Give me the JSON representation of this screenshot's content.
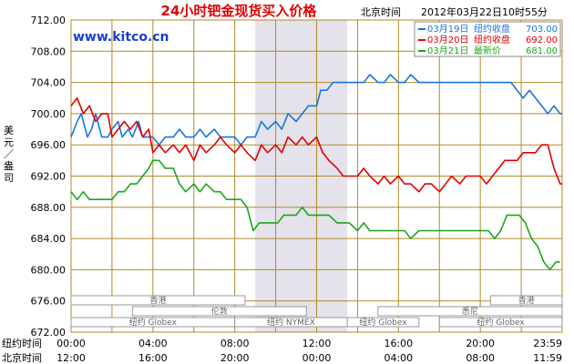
{
  "header": {
    "title": "24小时钯金现货买入价格",
    "location": "北京时间",
    "timestamp": "2012年03月22日10时55分",
    "site": "www.kitco.cn"
  },
  "colors": {
    "title": "#e00000",
    "site": "#1a3fd0",
    "grid": "#b08a2a",
    "ny_shade": "#e4e2ea",
    "legend_blue": "#1a74e0",
    "legend_red": "#e00000",
    "legend_green": "#1aa81a"
  },
  "legend": [
    {
      "date": "03月19日",
      "label": "纽约收盘",
      "value": "703.00",
      "color": "#1a74e0"
    },
    {
      "date": "03月20日",
      "label": "纽约收盘",
      "value": "692.00",
      "color": "#e00000"
    },
    {
      "date": "03月21日",
      "label": "最新价",
      "value": "681.00",
      "color": "#1aa81a"
    }
  ],
  "axis": {
    "ylabel": "美元／盎司",
    "row1_label": "纽约时间",
    "row2_label": "北京时间",
    "ny_times": [
      "00:00",
      "04:00",
      "08:00",
      "12:00",
      "16:00",
      "20:00",
      "23:59"
    ],
    "bj_times": [
      "12:00",
      "16:00",
      "20:00",
      "00:00",
      "04:00",
      "08:00",
      "11:59"
    ]
  },
  "sessions": [
    {
      "label": "香港",
      "start": 0,
      "end": 8.5
    },
    {
      "label": "伦敦",
      "start": 3,
      "end": 11.5
    },
    {
      "label": "纽约 Globex",
      "start": 0,
      "end": 8
    },
    {
      "label": "纽约 NYMEX",
      "start": 8,
      "end": 13.5
    },
    {
      "label": "纽约 Globex",
      "start": 13.5,
      "end": 17
    },
    {
      "label": "悉尼",
      "start": 15,
      "end": 24
    },
    {
      "label": "香港",
      "start": 20.5,
      "end": 24
    },
    {
      "label": "纽约 Globex",
      "start": 18,
      "end": 24
    }
  ],
  "chart_data": {
    "type": "line",
    "title": "24小时钯金现货买入价格",
    "ylabel": "美元／盎司",
    "xlabel": "纽约时间",
    "ylim": [
      672,
      712
    ],
    "yticks": [
      "712.00",
      "708.00",
      "704.00",
      "700.00",
      "696.00",
      "692.00",
      "688.00",
      "684.00",
      "680.00",
      "676.00",
      "672.00"
    ],
    "xlim": [
      0,
      24
    ],
    "shaded_range": [
      9,
      13.5
    ],
    "grid": true,
    "legend_position": "top-right",
    "series": [
      {
        "name": "03月19日 纽约收盘 703.00",
        "color": "#1a74e0",
        "points": [
          [
            0,
            697
          ],
          [
            0.3,
            699
          ],
          [
            0.5,
            700
          ],
          [
            0.8,
            697
          ],
          [
            1.0,
            698
          ],
          [
            1.2,
            700
          ],
          [
            1.5,
            697
          ],
          [
            1.8,
            697
          ],
          [
            2.0,
            698
          ],
          [
            2.3,
            699
          ],
          [
            2.5,
            697
          ],
          [
            2.8,
            698
          ],
          [
            3.0,
            697
          ],
          [
            3.3,
            699
          ],
          [
            3.5,
            697
          ],
          [
            3.8,
            697
          ],
          [
            4.0,
            697
          ],
          [
            4.3,
            696
          ],
          [
            4.6,
            697
          ],
          [
            5.0,
            697
          ],
          [
            5.3,
            698
          ],
          [
            5.6,
            697
          ],
          [
            6.0,
            697
          ],
          [
            6.3,
            698
          ],
          [
            6.6,
            697
          ],
          [
            7.0,
            698
          ],
          [
            7.3,
            697
          ],
          [
            7.6,
            697
          ],
          [
            8.0,
            697
          ],
          [
            8.3,
            696
          ],
          [
            8.6,
            697
          ],
          [
            9.0,
            697
          ],
          [
            9.3,
            699
          ],
          [
            9.6,
            698
          ],
          [
            10.0,
            699
          ],
          [
            10.3,
            698
          ],
          [
            10.6,
            700
          ],
          [
            11.0,
            699
          ],
          [
            11.3,
            700
          ],
          [
            11.6,
            701
          ],
          [
            12.0,
            701
          ],
          [
            12.2,
            703
          ],
          [
            12.5,
            703
          ],
          [
            12.8,
            704
          ],
          [
            13.0,
            704
          ],
          [
            13.3,
            704
          ],
          [
            13.6,
            704
          ],
          [
            14.0,
            704
          ],
          [
            14.3,
            704
          ],
          [
            14.6,
            705
          ],
          [
            15.0,
            704
          ],
          [
            15.3,
            704
          ],
          [
            15.6,
            705
          ],
          [
            16.0,
            704
          ],
          [
            16.3,
            704
          ],
          [
            16.6,
            705
          ],
          [
            17.0,
            704
          ],
          [
            17.3,
            704
          ],
          [
            17.6,
            704
          ],
          [
            18.0,
            704
          ],
          [
            18.3,
            704
          ],
          [
            18.6,
            704
          ],
          [
            19.0,
            704
          ],
          [
            19.3,
            704
          ],
          [
            19.6,
            704
          ],
          [
            20.0,
            704
          ],
          [
            20.3,
            704
          ],
          [
            20.6,
            704
          ],
          [
            20.9,
            704
          ],
          [
            21.2,
            704
          ],
          [
            21.5,
            704
          ],
          [
            21.8,
            703
          ],
          [
            22.1,
            702
          ],
          [
            22.4,
            703
          ],
          [
            22.7,
            702
          ],
          [
            23.0,
            701
          ],
          [
            23.3,
            700
          ],
          [
            23.6,
            701
          ],
          [
            23.9,
            700
          ],
          [
            24.0,
            700
          ]
        ]
      },
      {
        "name": "03月20日 纽约收盘 692.00",
        "color": "#e00000",
        "points": [
          [
            0,
            701
          ],
          [
            0.3,
            702
          ],
          [
            0.6,
            700
          ],
          [
            0.9,
            701
          ],
          [
            1.2,
            699
          ],
          [
            1.5,
            700
          ],
          [
            1.8,
            700
          ],
          [
            2.0,
            697
          ],
          [
            2.3,
            698
          ],
          [
            2.6,
            699
          ],
          [
            2.9,
            698
          ],
          [
            3.2,
            699
          ],
          [
            3.5,
            697
          ],
          [
            3.8,
            698
          ],
          [
            4.0,
            695
          ],
          [
            4.3,
            696
          ],
          [
            4.6,
            695
          ],
          [
            5.0,
            696
          ],
          [
            5.3,
            695
          ],
          [
            5.6,
            696
          ],
          [
            6.0,
            694
          ],
          [
            6.3,
            696
          ],
          [
            6.6,
            695
          ],
          [
            7.0,
            696
          ],
          [
            7.3,
            697
          ],
          [
            7.6,
            696
          ],
          [
            8.0,
            695
          ],
          [
            8.3,
            696
          ],
          [
            8.6,
            695
          ],
          [
            9.0,
            694
          ],
          [
            9.3,
            696
          ],
          [
            9.6,
            695
          ],
          [
            10.0,
            696
          ],
          [
            10.3,
            695
          ],
          [
            10.6,
            697
          ],
          [
            11.0,
            696
          ],
          [
            11.3,
            697
          ],
          [
            11.6,
            696
          ],
          [
            12.0,
            697
          ],
          [
            12.3,
            695
          ],
          [
            12.6,
            694
          ],
          [
            13.0,
            693
          ],
          [
            13.3,
            692
          ],
          [
            13.6,
            692
          ],
          [
            14.0,
            692
          ],
          [
            14.3,
            693
          ],
          [
            14.6,
            692
          ],
          [
            15.0,
            691
          ],
          [
            15.3,
            692
          ],
          [
            15.6,
            691
          ],
          [
            16.0,
            692
          ],
          [
            16.3,
            691
          ],
          [
            16.6,
            691
          ],
          [
            17.0,
            690
          ],
          [
            17.3,
            691
          ],
          [
            17.6,
            691
          ],
          [
            18.0,
            690
          ],
          [
            18.3,
            691
          ],
          [
            18.6,
            692
          ],
          [
            19.0,
            691
          ],
          [
            19.3,
            692
          ],
          [
            19.6,
            692
          ],
          [
            20.0,
            692
          ],
          [
            20.3,
            691
          ],
          [
            20.6,
            692
          ],
          [
            20.9,
            693
          ],
          [
            21.2,
            694
          ],
          [
            21.5,
            694
          ],
          [
            21.8,
            694
          ],
          [
            22.1,
            695
          ],
          [
            22.4,
            695
          ],
          [
            22.7,
            695
          ],
          [
            23.0,
            696
          ],
          [
            23.3,
            696
          ],
          [
            23.6,
            693
          ],
          [
            23.9,
            691
          ],
          [
            24.0,
            691
          ]
        ]
      },
      {
        "name": "03月21日 最新价 681.00",
        "color": "#1aa81a",
        "points": [
          [
            0,
            690
          ],
          [
            0.3,
            689
          ],
          [
            0.6,
            690
          ],
          [
            0.9,
            689
          ],
          [
            1.2,
            689
          ],
          [
            1.5,
            689
          ],
          [
            1.8,
            689
          ],
          [
            2.0,
            689
          ],
          [
            2.3,
            690
          ],
          [
            2.6,
            690
          ],
          [
            2.9,
            691
          ],
          [
            3.2,
            691
          ],
          [
            3.5,
            692
          ],
          [
            3.8,
            693
          ],
          [
            4.0,
            694
          ],
          [
            4.3,
            694
          ],
          [
            4.6,
            693
          ],
          [
            5.0,
            693
          ],
          [
            5.3,
            691
          ],
          [
            5.6,
            690
          ],
          [
            6.0,
            691
          ],
          [
            6.3,
            690
          ],
          [
            6.6,
            691
          ],
          [
            7.0,
            690
          ],
          [
            7.3,
            690
          ],
          [
            7.6,
            689
          ],
          [
            8.0,
            689
          ],
          [
            8.3,
            689
          ],
          [
            8.6,
            688
          ],
          [
            8.9,
            685
          ],
          [
            9.2,
            686
          ],
          [
            9.5,
            686
          ],
          [
            9.8,
            686
          ],
          [
            10.1,
            686
          ],
          [
            10.4,
            687
          ],
          [
            10.7,
            687
          ],
          [
            11.0,
            687
          ],
          [
            11.3,
            688
          ],
          [
            11.6,
            687
          ],
          [
            12.0,
            687
          ],
          [
            12.3,
            687
          ],
          [
            12.6,
            687
          ],
          [
            13.0,
            686
          ],
          [
            13.3,
            686
          ],
          [
            13.6,
            686
          ],
          [
            14.0,
            685
          ],
          [
            14.3,
            686
          ],
          [
            14.6,
            685
          ],
          [
            15.0,
            685
          ],
          [
            15.3,
            685
          ],
          [
            15.6,
            685
          ],
          [
            16.0,
            685
          ],
          [
            16.3,
            685
          ],
          [
            16.6,
            684
          ],
          [
            17.0,
            685
          ],
          [
            17.3,
            685
          ],
          [
            17.6,
            685
          ],
          [
            18.0,
            685
          ],
          [
            18.3,
            685
          ],
          [
            18.6,
            685
          ],
          [
            18.9,
            685
          ],
          [
            19.2,
            685
          ],
          [
            19.5,
            685
          ],
          [
            19.8,
            685
          ],
          [
            20.1,
            685
          ],
          [
            20.4,
            685
          ],
          [
            20.7,
            684
          ],
          [
            21.0,
            685
          ],
          [
            21.3,
            687
          ],
          [
            21.6,
            687
          ],
          [
            21.9,
            687
          ],
          [
            22.2,
            686
          ],
          [
            22.5,
            684
          ],
          [
            22.8,
            683
          ],
          [
            23.1,
            681
          ],
          [
            23.4,
            680
          ],
          [
            23.7,
            681
          ],
          [
            23.9,
            681
          ]
        ]
      }
    ]
  }
}
